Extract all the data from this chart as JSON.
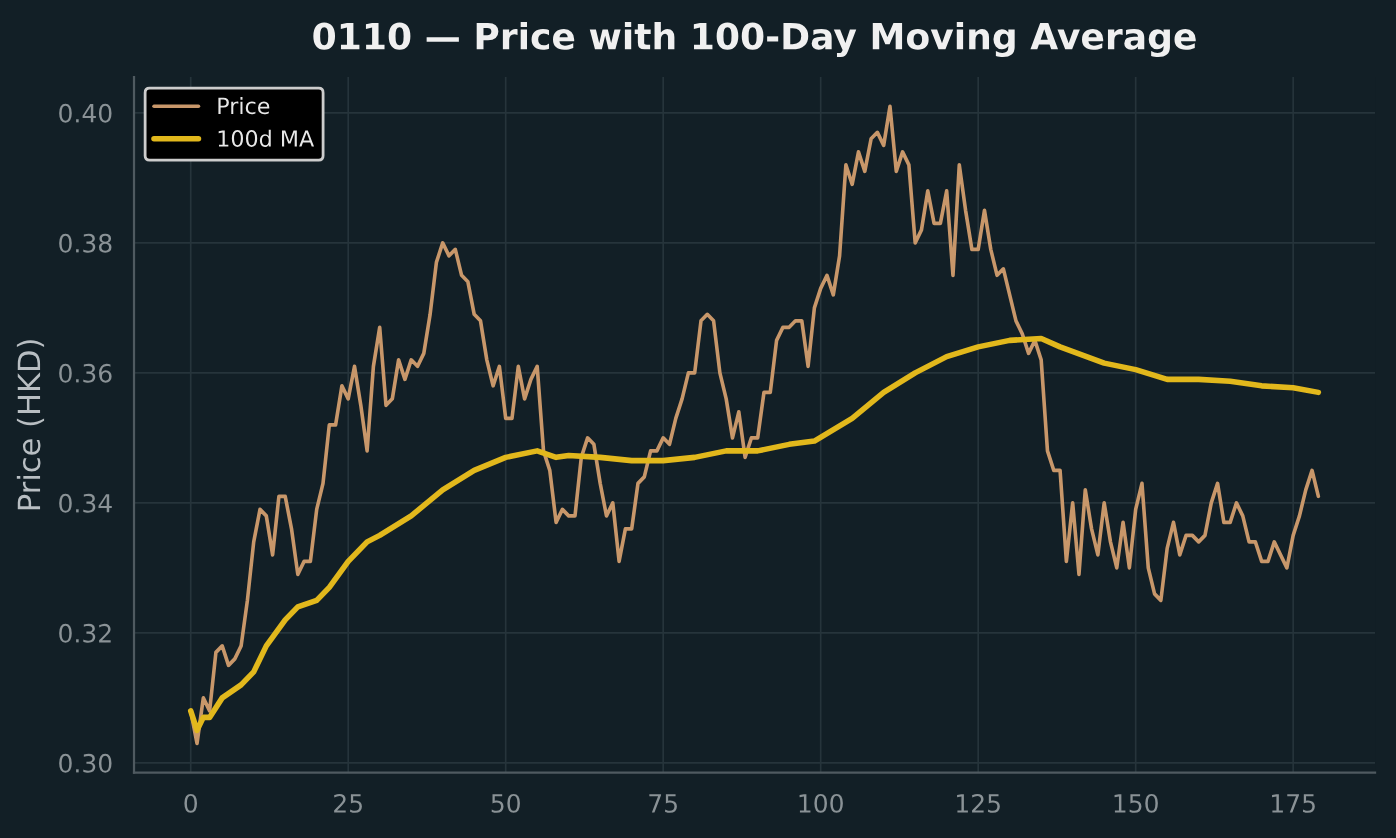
{
  "chart_data": {
    "type": "line",
    "title": "0110 — Price with 100-Day Moving Average",
    "ylabel": "Price (HKD)",
    "xlim": [
      -9,
      188
    ],
    "xticks": [
      0,
      25,
      50,
      75,
      100,
      125,
      150,
      175
    ],
    "ylim": [
      0.2985,
      0.4055
    ],
    "yticks": [
      {
        "value": 0.3,
        "label": "0.30"
      },
      {
        "value": 0.32,
        "label": "0.32"
      },
      {
        "value": 0.34,
        "label": "0.34"
      },
      {
        "value": 0.36,
        "label": "0.36"
      },
      {
        "value": 0.38,
        "label": "0.38"
      },
      {
        "value": 0.4,
        "label": "0.40"
      }
    ],
    "grid": true,
    "legend": "top left",
    "series": [
      {
        "name": "Price",
        "color": "#c8976a",
        "x": [
          0,
          1,
          2,
          3,
          4,
          5,
          6,
          7,
          8,
          9,
          10,
          11,
          12,
          13,
          14,
          15,
          16,
          17,
          18,
          19,
          20,
          21,
          22,
          23,
          24,
          25,
          26,
          27,
          28,
          29,
          30,
          31,
          32,
          33,
          34,
          35,
          36,
          37,
          38,
          39,
          40,
          41,
          42,
          43,
          44,
          45,
          46,
          47,
          48,
          49,
          50,
          51,
          52,
          53,
          54,
          55,
          56,
          57,
          58,
          59,
          60,
          61,
          62,
          63,
          64,
          65,
          66,
          67,
          68,
          69,
          70,
          71,
          72,
          73,
          74,
          75,
          76,
          77,
          78,
          79,
          80,
          81,
          82,
          83,
          84,
          85,
          86,
          87,
          88,
          89,
          90,
          91,
          92,
          93,
          94,
          95,
          96,
          97,
          98,
          99,
          100,
          101,
          102,
          103,
          104,
          105,
          106,
          107,
          108,
          109,
          110,
          111,
          112,
          113,
          114,
          115,
          116,
          117,
          118,
          119,
          120,
          121,
          122,
          123,
          124,
          125,
          126,
          127,
          128,
          129,
          130,
          131,
          132,
          133,
          134,
          135,
          136,
          137,
          138,
          139,
          140,
          141,
          142,
          143,
          144,
          145,
          146,
          147,
          148,
          149,
          150,
          151,
          152,
          153,
          154,
          155,
          156,
          157,
          158,
          159,
          160,
          161,
          162,
          163,
          164,
          165,
          166,
          167,
          168,
          169,
          170,
          171,
          172,
          173,
          174,
          175,
          176,
          177,
          178,
          179
        ],
        "values": [
          0.308,
          0.303,
          0.31,
          0.308,
          0.317,
          0.318,
          0.315,
          0.316,
          0.318,
          0.325,
          0.334,
          0.339,
          0.338,
          0.332,
          0.341,
          0.341,
          0.336,
          0.329,
          0.331,
          0.331,
          0.339,
          0.343,
          0.352,
          0.352,
          0.358,
          0.356,
          0.361,
          0.355,
          0.348,
          0.361,
          0.367,
          0.355,
          0.356,
          0.362,
          0.359,
          0.362,
          0.361,
          0.363,
          0.369,
          0.377,
          0.38,
          0.378,
          0.379,
          0.375,
          0.374,
          0.369,
          0.368,
          0.362,
          0.358,
          0.361,
          0.353,
          0.353,
          0.361,
          0.356,
          0.359,
          0.361,
          0.348,
          0.345,
          0.337,
          0.339,
          0.338,
          0.338,
          0.347,
          0.35,
          0.349,
          0.343,
          0.338,
          0.34,
          0.331,
          0.336,
          0.336,
          0.343,
          0.344,
          0.348,
          0.348,
          0.35,
          0.349,
          0.353,
          0.356,
          0.36,
          0.36,
          0.368,
          0.369,
          0.368,
          0.36,
          0.356,
          0.35,
          0.354,
          0.347,
          0.35,
          0.35,
          0.357,
          0.357,
          0.365,
          0.367,
          0.367,
          0.368,
          0.368,
          0.361,
          0.37,
          0.373,
          0.375,
          0.372,
          0.378,
          0.392,
          0.389,
          0.394,
          0.391,
          0.396,
          0.397,
          0.395,
          0.401,
          0.391,
          0.394,
          0.392,
          0.38,
          0.382,
          0.388,
          0.383,
          0.383,
          0.388,
          0.375,
          0.392,
          0.385,
          0.379,
          0.379,
          0.385,
          0.379,
          0.375,
          0.376,
          0.372,
          0.368,
          0.366,
          0.363,
          0.365,
          0.362,
          0.348,
          0.345,
          0.345,
          0.331,
          0.34,
          0.329,
          0.342,
          0.336,
          0.332,
          0.34,
          0.334,
          0.33,
          0.337,
          0.33,
          0.339,
          0.343,
          0.33,
          0.326,
          0.325,
          0.333,
          0.337,
          0.332,
          0.335,
          0.335,
          0.334,
          0.335,
          0.34,
          0.343,
          0.337,
          0.337,
          0.34,
          0.338,
          0.334,
          0.334,
          0.331,
          0.331,
          0.334,
          0.332,
          0.33,
          0.335,
          0.338,
          0.342,
          0.345,
          0.341
        ]
      },
      {
        "name": "100d MA",
        "color": "#e2b81c",
        "x": [
          0,
          1,
          2,
          3,
          5,
          8,
          10,
          12,
          15,
          17,
          20,
          22,
          25,
          28,
          30,
          35,
          40,
          45,
          50,
          55,
          58,
          60,
          65,
          70,
          75,
          80,
          85,
          90,
          95,
          99,
          105,
          110,
          115,
          120,
          125,
          130,
          135,
          138,
          145,
          150,
          155,
          160,
          165,
          170,
          175,
          179
        ],
        "values": [
          0.308,
          0.305,
          0.307,
          0.307,
          0.31,
          0.312,
          0.314,
          0.318,
          0.322,
          0.324,
          0.325,
          0.327,
          0.331,
          0.334,
          0.335,
          0.338,
          0.342,
          0.345,
          0.347,
          0.348,
          0.347,
          0.3473,
          0.347,
          0.3465,
          0.3465,
          0.347,
          0.348,
          0.348,
          0.349,
          0.3495,
          0.353,
          0.357,
          0.36,
          0.3625,
          0.364,
          0.365,
          0.3653,
          0.364,
          0.3615,
          0.3605,
          0.359,
          0.359,
          0.3587,
          0.358,
          0.3577,
          0.357
        ]
      }
    ]
  }
}
